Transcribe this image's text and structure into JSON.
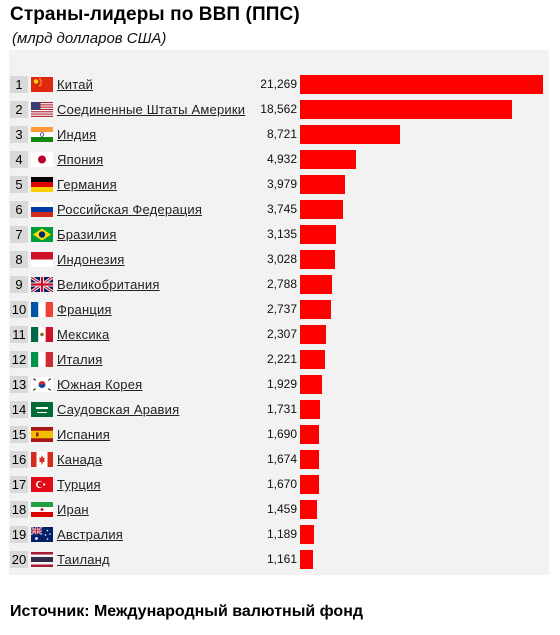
{
  "header": {
    "title": "Страны-лидеры по ВВП (ППС)",
    "subtitle": "(млрд долларов США)"
  },
  "footer": {
    "source": "Источник: Международный валютный фонд"
  },
  "chart_data": {
    "type": "bar",
    "orientation": "horizontal",
    "title": "Страны-лидеры по ВВП (ППС)",
    "subtitle": "(млрд долларов США)",
    "bar_color": "#ff0000",
    "ranks": [
      "1",
      "2",
      "3",
      "4",
      "5",
      "6",
      "7",
      "8",
      "9",
      "10",
      "11",
      "12",
      "13",
      "14",
      "15",
      "16",
      "17",
      "18",
      "19",
      "20"
    ],
    "categories": [
      "Китай",
      "Соединенные Штаты Америки",
      "Индия",
      "Япония",
      "Германия",
      "Российская Федерация",
      "Бразилия",
      "Индонезия",
      "Великобритания",
      "Франция",
      "Мексика",
      "Италия",
      "Южная Корея",
      "Саудовская Аравия",
      "Испания",
      "Канада",
      "Турция",
      "Иран",
      "Австралия",
      "Таиланд"
    ],
    "value_labels": [
      "21,269",
      "18,562",
      "8,721",
      "4,932",
      "3,979",
      "3,745",
      "3,135",
      "3,028",
      "2,788",
      "2,737",
      "2,307",
      "2,221",
      "1,929",
      "1,731",
      "1,690",
      "1,674",
      "1,670",
      "1,459",
      "1,189",
      "1,161"
    ],
    "values": [
      21269,
      18562,
      8721,
      4932,
      3979,
      3745,
      3135,
      3028,
      2788,
      2737,
      2307,
      2221,
      1929,
      1731,
      1690,
      1674,
      1670,
      1459,
      1189,
      1161
    ],
    "flag_icons": [
      "china-flag-icon",
      "usa-flag-icon",
      "india-flag-icon",
      "japan-flag-icon",
      "germany-flag-icon",
      "russia-flag-icon",
      "brazil-flag-icon",
      "indonesia-flag-icon",
      "uk-flag-icon",
      "france-flag-icon",
      "mexico-flag-icon",
      "italy-flag-icon",
      "south-korea-flag-icon",
      "saudi-arabia-flag-icon",
      "spain-flag-icon",
      "canada-flag-icon",
      "turkey-flag-icon",
      "iran-flag-icon",
      "australia-flag-icon",
      "thailand-flag-icon"
    ]
  }
}
